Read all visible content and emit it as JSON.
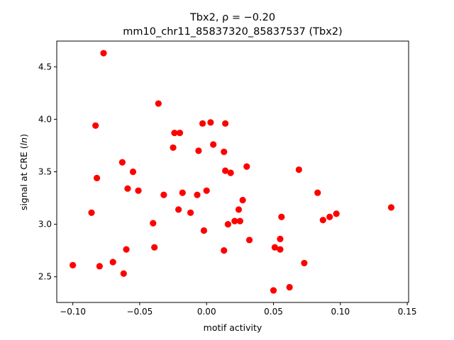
{
  "chart_data": {
    "type": "scatter",
    "title_line1": "Tbx2, ρ = −0.20",
    "title_line2": "mm10_chr11_85837320_85837537 (Tbx2)",
    "xlabel": "motif activity",
    "ylabel": "signal at CRE (",
    "ylabel_italic": "ln",
    "ylabel_suffix": ")",
    "xlim": [
      -0.112,
      0.151
    ],
    "ylim": [
      2.255,
      4.745
    ],
    "xticks": [
      -0.1,
      -0.05,
      0.0,
      0.05,
      0.1,
      0.15
    ],
    "xtick_labels": [
      "−0.10",
      "−0.05",
      "0.00",
      "0.05",
      "0.10",
      "0.15"
    ],
    "yticks": [
      2.5,
      3.0,
      3.5,
      4.0,
      4.5
    ],
    "ytick_labels": [
      "2.5",
      "3.0",
      "3.5",
      "4.0",
      "4.5"
    ],
    "grid": false,
    "marker_color": "#ff0000",
    "points": [
      {
        "x": -0.077,
        "y": 4.63
      },
      {
        "x": -0.036,
        "y": 4.15
      },
      {
        "x": -0.083,
        "y": 3.94
      },
      {
        "x": -0.024,
        "y": 3.87
      },
      {
        "x": -0.02,
        "y": 3.87
      },
      {
        "x": -0.003,
        "y": 3.96
      },
      {
        "x": 0.003,
        "y": 3.97
      },
      {
        "x": 0.014,
        "y": 3.96
      },
      {
        "x": 0.005,
        "y": 3.76
      },
      {
        "x": -0.025,
        "y": 3.73
      },
      {
        "x": -0.006,
        "y": 3.7
      },
      {
        "x": 0.013,
        "y": 3.69
      },
      {
        "x": -0.063,
        "y": 3.59
      },
      {
        "x": -0.055,
        "y": 3.5
      },
      {
        "x": 0.014,
        "y": 3.51
      },
      {
        "x": 0.018,
        "y": 3.49
      },
      {
        "x": 0.03,
        "y": 3.55
      },
      {
        "x": 0.069,
        "y": 3.52
      },
      {
        "x": -0.082,
        "y": 3.44
      },
      {
        "x": -0.059,
        "y": 3.34
      },
      {
        "x": -0.051,
        "y": 3.32
      },
      {
        "x": -0.032,
        "y": 3.28
      },
      {
        "x": -0.018,
        "y": 3.3
      },
      {
        "x": -0.007,
        "y": 3.28
      },
      {
        "x": 0.0,
        "y": 3.32
      },
      {
        "x": 0.027,
        "y": 3.23
      },
      {
        "x": 0.083,
        "y": 3.3
      },
      {
        "x": -0.086,
        "y": 3.11
      },
      {
        "x": -0.021,
        "y": 3.14
      },
      {
        "x": -0.012,
        "y": 3.11
      },
      {
        "x": 0.024,
        "y": 3.14
      },
      {
        "x": 0.056,
        "y": 3.07
      },
      {
        "x": 0.092,
        "y": 3.07
      },
      {
        "x": 0.097,
        "y": 3.1
      },
      {
        "x": 0.138,
        "y": 3.16
      },
      {
        "x": -0.04,
        "y": 3.01
      },
      {
        "x": 0.016,
        "y": 3.0
      },
      {
        "x": 0.021,
        "y": 3.03
      },
      {
        "x": 0.025,
        "y": 3.03
      },
      {
        "x": 0.087,
        "y": 3.04
      },
      {
        "x": -0.002,
        "y": 2.94
      },
      {
        "x": 0.032,
        "y": 2.85
      },
      {
        "x": 0.055,
        "y": 2.86
      },
      {
        "x": -0.06,
        "y": 2.76
      },
      {
        "x": -0.039,
        "y": 2.78
      },
      {
        "x": 0.013,
        "y": 2.75
      },
      {
        "x": 0.051,
        "y": 2.78
      },
      {
        "x": 0.055,
        "y": 2.76
      },
      {
        "x": -0.07,
        "y": 2.64
      },
      {
        "x": 0.073,
        "y": 2.63
      },
      {
        "x": -0.1,
        "y": 2.61
      },
      {
        "x": -0.08,
        "y": 2.6
      },
      {
        "x": -0.062,
        "y": 2.53
      },
      {
        "x": 0.062,
        "y": 2.4
      },
      {
        "x": 0.05,
        "y": 2.37
      }
    ]
  }
}
